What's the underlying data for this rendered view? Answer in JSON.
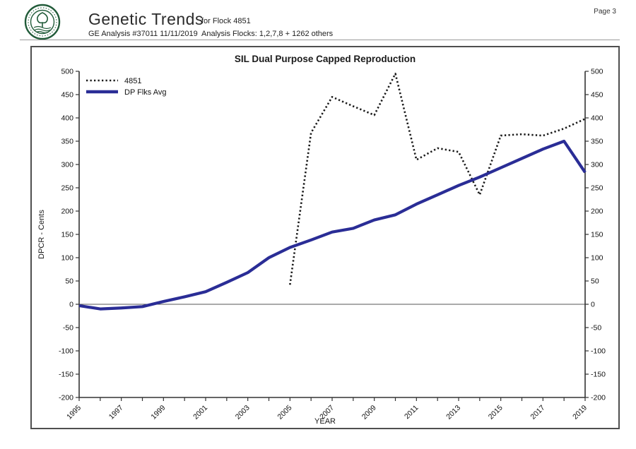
{
  "page_label": "Page 3",
  "header": {
    "title": "Genetic Trends",
    "analysis_line": "GE Analysis #37011 11/11/2019",
    "flock_line": "for Flock 4851",
    "flocks_detail": "Analysis Flocks: 1,2,7,8 + 1262 others",
    "logo_icon": "sil-green-seal-logo"
  },
  "chart_data": {
    "type": "line",
    "title": "SIL Dual Purpose Capped Reproduction",
    "xlabel": "YEAR",
    "ylabel": "DPCR - Cents",
    "ylim": [
      -200,
      500
    ],
    "ytick_step": 50,
    "x_range": [
      1995,
      2019
    ],
    "x_labeled_ticks": [
      1995,
      1997,
      1999,
      2001,
      2003,
      2005,
      2007,
      2009,
      2011,
      2013,
      2015,
      2017,
      2019
    ],
    "grid": false,
    "zero_line": true,
    "legend_position": "top-left-inside",
    "series": [
      {
        "name": "4851",
        "style": "dotted",
        "color": "#1a1a1a",
        "x": [
          2005,
          2006,
          2007,
          2008,
          2009,
          2010,
          2011,
          2012,
          2013,
          2014,
          2015,
          2016,
          2017,
          2018,
          2019
        ],
        "values": [
          42,
          368,
          445,
          425,
          406,
          495,
          310,
          335,
          327,
          235,
          362,
          365,
          362,
          377,
          398
        ]
      },
      {
        "name": "DP Flks Avg",
        "style": "solid",
        "color": "#2a2d96",
        "x": [
          1995,
          1996,
          1997,
          1998,
          1999,
          2000,
          2001,
          2002,
          2003,
          2004,
          2005,
          2006,
          2007,
          2008,
          2009,
          2010,
          2011,
          2012,
          2013,
          2014,
          2015,
          2016,
          2017,
          2018,
          2019
        ],
        "values": [
          -3,
          -10,
          -8,
          -5,
          6,
          16,
          27,
          47,
          68,
          100,
          122,
          138,
          155,
          163,
          181,
          192,
          215,
          235,
          255,
          273,
          293,
          313,
          333,
          350,
          283
        ]
      }
    ]
  }
}
